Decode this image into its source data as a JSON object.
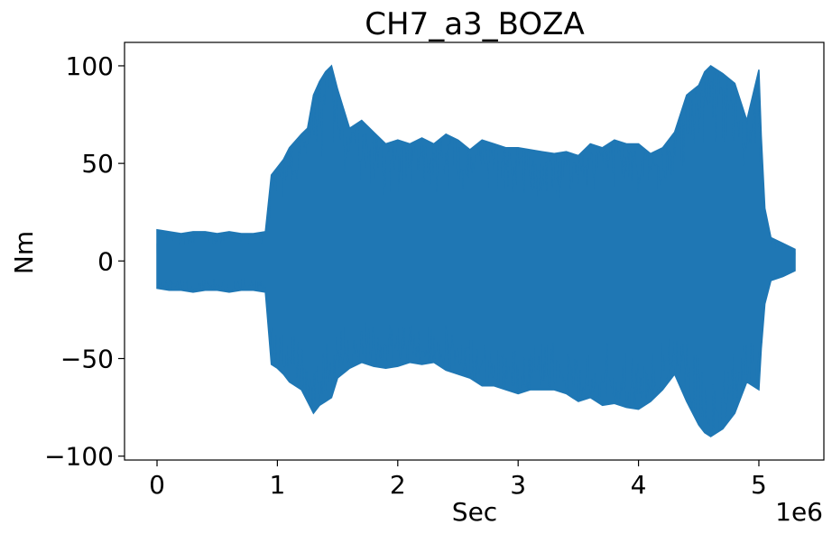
{
  "chart_data": {
    "type": "line",
    "title": "CH7_a3_BOZA",
    "xlabel": "Sec",
    "ylabel": "Nm",
    "x_offset_label": "1e6",
    "x_scale": 1000000,
    "xlim": [
      -0.27,
      5.54
    ],
    "ylim": [
      -102,
      112
    ],
    "xticks": [
      0,
      1,
      2,
      3,
      4,
      5
    ],
    "xtick_labels": [
      "0",
      "1",
      "2",
      "3",
      "4",
      "5"
    ],
    "yticks": [
      100,
      50,
      0,
      -50,
      -100
    ],
    "ytick_labels": [
      "100",
      "50",
      "0",
      "−50",
      "−100"
    ],
    "grid": false,
    "series": [
      {
        "color": "#1f77b4",
        "envelope_x": [
          0.0,
          0.1,
          0.2,
          0.3,
          0.4,
          0.5,
          0.6,
          0.7,
          0.8,
          0.9,
          0.95,
          1.0,
          1.05,
          1.1,
          1.2,
          1.25,
          1.3,
          1.35,
          1.4,
          1.45,
          1.5,
          1.6,
          1.7,
          1.8,
          1.9,
          2.0,
          2.1,
          2.2,
          2.3,
          2.4,
          2.5,
          2.6,
          2.7,
          2.8,
          2.9,
          3.0,
          3.1,
          3.2,
          3.3,
          3.4,
          3.5,
          3.6,
          3.7,
          3.8,
          3.9,
          4.0,
          4.1,
          4.2,
          4.3,
          4.4,
          4.5,
          4.55,
          4.6,
          4.7,
          4.8,
          4.9,
          5.0,
          5.02,
          5.05,
          5.1,
          5.2,
          5.3
        ],
        "envelope_max": [
          16,
          15,
          14,
          15,
          15,
          14,
          15,
          14,
          14,
          15,
          44,
          48,
          52,
          58,
          65,
          68,
          85,
          92,
          97,
          100,
          88,
          68,
          72,
          66,
          60,
          62,
          60,
          63,
          60,
          65,
          62,
          57,
          62,
          60,
          58,
          58,
          57,
          56,
          55,
          56,
          54,
          60,
          58,
          62,
          60,
          60,
          55,
          58,
          66,
          85,
          90,
          97,
          100,
          96,
          91,
          72,
          98,
          64,
          27,
          12,
          9,
          6
        ],
        "envelope_min": [
          -14,
          -15,
          -15,
          -16,
          -15,
          -15,
          -16,
          -15,
          -15,
          -16,
          -53,
          -55,
          -58,
          -62,
          -66,
          -72,
          -78,
          -74,
          -72,
          -70,
          -60,
          -55,
          -52,
          -54,
          -55,
          -54,
          -52,
          -53,
          -52,
          -56,
          -58,
          -60,
          -64,
          -64,
          -66,
          -68,
          -66,
          -66,
          -66,
          -68,
          -72,
          -70,
          -74,
          -73,
          -75,
          -76,
          -72,
          -66,
          -58,
          -72,
          -84,
          -88,
          -90,
          -86,
          -78,
          -62,
          -66,
          -45,
          -22,
          -10,
          -8,
          -5
        ]
      }
    ]
  }
}
